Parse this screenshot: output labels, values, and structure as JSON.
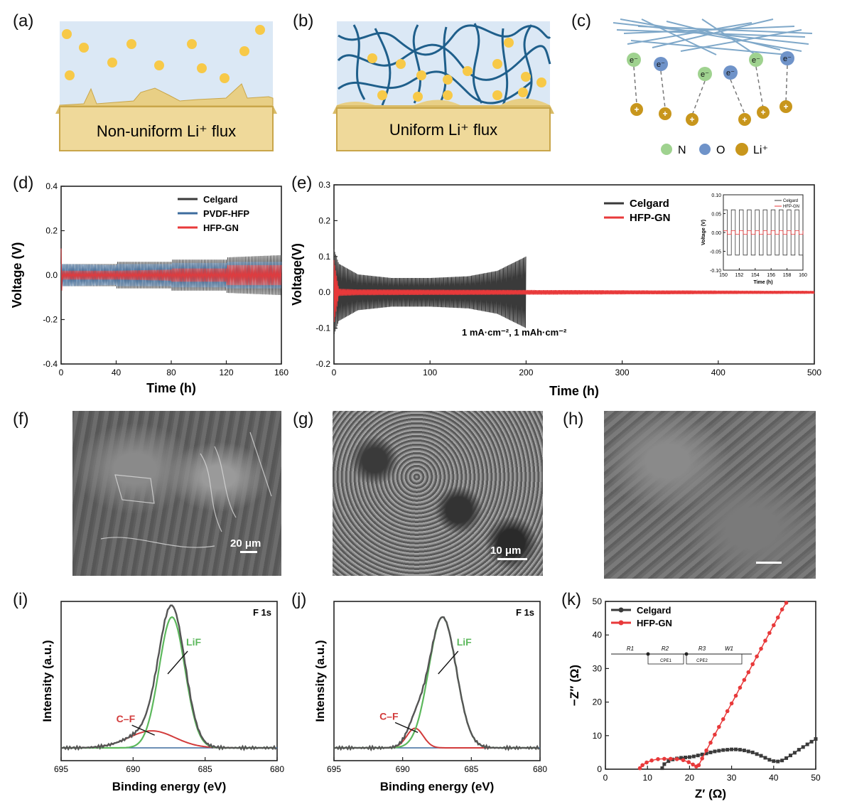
{
  "panels": {
    "a": {
      "letter": "(a)",
      "caption": "Non-uniform  Li⁺ flux"
    },
    "b": {
      "letter": "(b)",
      "caption": "Uniform  Li⁺ flux"
    },
    "c": {
      "letter": "(c)",
      "electron": "e⁻",
      "plus": "+",
      "legend": [
        {
          "label": "N",
          "color": "#9fd28f"
        },
        {
          "label": "O",
          "color": "#6f93c9"
        },
        {
          "label": "Li⁺",
          "color": "#c8961c"
        }
      ]
    },
    "d": {
      "letter": "(d)"
    },
    "e": {
      "letter": "(e)",
      "annotation": "1 mA·cm⁻², 1 mAh·cm⁻²"
    },
    "f": {
      "letter": "(f)",
      "scalebar": "20 μm"
    },
    "g": {
      "letter": "(g)",
      "scalebar": "10 μm"
    },
    "h": {
      "letter": "(h)"
    },
    "i": {
      "letter": "(i)",
      "tag": "F 1s",
      "lif_label": "LiF",
      "cf_label": "C–F"
    },
    "j": {
      "letter": "(j)",
      "tag": "F 1s",
      "lif_label": "LiF",
      "cf_label": "C–F"
    },
    "k": {
      "letter": "(k)",
      "circuit": {
        "r1": "R1",
        "r2": "R2",
        "r3": "R3",
        "w1": "W1",
        "cpe1": "CPE1",
        "cpe2": "CPE2"
      }
    }
  },
  "colors": {
    "celgard": "#3a3a3a",
    "pvdf": "#3d6c9e",
    "hfpgn": "#e8393a",
    "fit_green": "#5cb85c",
    "fit_red": "#d23b3b",
    "baseline": "#3d6c9e",
    "ion": "#f7c948",
    "electrode": "#efd99a",
    "electrolyte": "#dbe8f5"
  },
  "chart_data": [
    {
      "id": "d",
      "type": "line",
      "xlabel": "Time (h)",
      "ylabel": "Voltage (V)",
      "xlim": [
        0,
        160
      ],
      "ylim": [
        -0.4,
        0.4
      ],
      "xticks": [
        0,
        40,
        80,
        120,
        160
      ],
      "yticks": [
        -0.4,
        -0.2,
        0.0,
        0.2,
        0.4
      ],
      "legend_position": "top-right",
      "series": [
        {
          "name": "Celgard",
          "envelope": [
            [
              0,
              0.05
            ],
            [
              40,
              0.05
            ],
            [
              40.1,
              0.06
            ],
            [
              80,
              0.06
            ],
            [
              80.1,
              0.07
            ],
            [
              120,
              0.07
            ],
            [
              120.1,
              0.08
            ],
            [
              160,
              0.09
            ]
          ]
        },
        {
          "name": "PVDF-HFP",
          "envelope": [
            [
              0,
              0.05
            ],
            [
              40,
              0.045
            ],
            [
              40.1,
              0.05
            ],
            [
              80,
              0.05
            ],
            [
              80.1,
              0.055
            ],
            [
              120,
              0.055
            ],
            [
              120.1,
              0.06
            ],
            [
              160,
              0.06
            ]
          ]
        },
        {
          "name": "HFP-GN",
          "envelope": [
            [
              0,
              0.12
            ],
            [
              1,
              0.02
            ],
            [
              40,
              0.02
            ],
            [
              40.1,
              0.02
            ],
            [
              80,
              0.025
            ],
            [
              80.1,
              0.03
            ],
            [
              120,
              0.03
            ],
            [
              120.1,
              0.045
            ],
            [
              160,
              0.045
            ]
          ]
        }
      ]
    },
    {
      "id": "e",
      "type": "line",
      "xlabel": "Time (h)",
      "ylabel": "Voltage(V)",
      "xlim": [
        0,
        500
      ],
      "ylim": [
        -0.2,
        0.3
      ],
      "xticks": [
        0,
        100,
        200,
        300,
        400,
        500
      ],
      "yticks": [
        -0.2,
        -0.1,
        0.0,
        0.1,
        0.2,
        0.3
      ],
      "legend_position": "top-right",
      "series": [
        {
          "name": "Celgard",
          "envelope": [
            [
              0,
              0.12
            ],
            [
              5,
              0.08
            ],
            [
              25,
              0.05
            ],
            [
              60,
              0.04
            ],
            [
              100,
              0.04
            ],
            [
              140,
              0.045
            ],
            [
              170,
              0.06
            ],
            [
              200,
              0.1
            ]
          ]
        },
        {
          "name": "HFP-GN",
          "envelope": [
            [
              0,
              0.09
            ],
            [
              5,
              0.01
            ],
            [
              25,
              0.008
            ],
            [
              500,
              0.004
            ]
          ]
        }
      ],
      "inset": {
        "xlabel": "Time (h)",
        "ylabel": "Voltage (V)",
        "xlim": [
          150,
          160
        ],
        "ylim": [
          -0.1,
          0.1
        ],
        "xticks": [
          150,
          152,
          154,
          156,
          158,
          160
        ],
        "yticks": [
          -0.1,
          -0.05,
          0.0,
          0.05,
          0.1
        ],
        "series": [
          {
            "name": "Celgard",
            "amplitude": 0.06,
            "period_h": 1
          },
          {
            "name": "HFP-GN",
            "amplitude": 0.005,
            "period_h": 1
          }
        ]
      }
    },
    {
      "id": "i",
      "type": "line",
      "xlabel": "Binding energy (eV)",
      "ylabel": "Intensity (a.u.)",
      "xlim": [
        695,
        680
      ],
      "xticks": [
        695,
        690,
        685,
        680
      ],
      "peaks": [
        {
          "name": "LiF",
          "center": 687.3,
          "height": 1.0,
          "sigma": 0.9
        },
        {
          "name": "C–F",
          "center": 688.7,
          "height": 0.13,
          "sigma": 1.6
        }
      ],
      "baseline": 0.0
    },
    {
      "id": "j",
      "type": "line",
      "xlabel": "Binding energy (eV)",
      "ylabel": "Intensity (a.u.)",
      "xlim": [
        695,
        680
      ],
      "xticks": [
        695,
        690,
        685,
        680
      ],
      "peaks": [
        {
          "name": "LiF",
          "center": 687.1,
          "height": 1.0,
          "sigma": 1.0
        },
        {
          "name": "C–F",
          "center": 689.1,
          "height": 0.15,
          "sigma": 0.6
        }
      ],
      "baseline": 0.0
    },
    {
      "id": "k",
      "type": "scatter",
      "xlabel": "Z′ (Ω)",
      "ylabel": "−Z″ (Ω)",
      "xlim": [
        0,
        50
      ],
      "ylim": [
        0,
        50
      ],
      "xticks": [
        0,
        10,
        20,
        30,
        40,
        50
      ],
      "yticks": [
        0,
        10,
        20,
        30,
        40,
        50
      ],
      "legend_position": "top-left",
      "series": [
        {
          "name": "Celgard",
          "points": [
            [
              13.5,
              0.3
            ],
            [
              14,
              1.5
            ],
            [
              15,
              2.4
            ],
            [
              16,
              2.9
            ],
            [
              17,
              3.2
            ],
            [
              18,
              3.4
            ],
            [
              19,
              3.5
            ],
            [
              20,
              3.6
            ],
            [
              21,
              3.8
            ],
            [
              22,
              4.1
            ],
            [
              23,
              4.4
            ],
            [
              24,
              4.7
            ],
            [
              25,
              5.0
            ],
            [
              26,
              5.3
            ],
            [
              27,
              5.5
            ],
            [
              28,
              5.7
            ],
            [
              29,
              5.8
            ],
            [
              30,
              5.9
            ],
            [
              31,
              5.9
            ],
            [
              32,
              5.8
            ],
            [
              33,
              5.6
            ],
            [
              34,
              5.3
            ],
            [
              35,
              5.0
            ],
            [
              36,
              4.5
            ],
            [
              37,
              4.0
            ],
            [
              38,
              3.4
            ],
            [
              39,
              2.8
            ],
            [
              40,
              2.4
            ],
            [
              41,
              2.3
            ],
            [
              42,
              2.6
            ],
            [
              43,
              3.3
            ],
            [
              44,
              4.1
            ],
            [
              45,
              4.9
            ],
            [
              46,
              5.8
            ],
            [
              47,
              6.6
            ],
            [
              48,
              7.4
            ],
            [
              49,
              8.2
            ],
            [
              50,
              9.0
            ]
          ]
        },
        {
          "name": "HFP-GN",
          "points": [
            [
              8.2,
              0.3
            ],
            [
              8.8,
              1.2
            ],
            [
              9.8,
              2.0
            ],
            [
              11,
              2.6
            ],
            [
              12.5,
              3.0
            ],
            [
              14,
              3.1
            ],
            [
              15.5,
              3.1
            ],
            [
              17,
              3.0
            ],
            [
              18.5,
              2.7
            ],
            [
              19.8,
              2.1
            ],
            [
              20.8,
              1.4
            ],
            [
              21.6,
              0.8
            ],
            [
              22.2,
              1.2
            ],
            [
              23,
              3.2
            ],
            [
              24,
              5.6
            ],
            [
              25,
              7.9
            ],
            [
              26,
              10.3
            ],
            [
              27,
              12.6
            ],
            [
              28,
              14.9
            ],
            [
              29,
              17.3
            ],
            [
              30,
              19.6
            ],
            [
              31,
              21.9
            ],
            [
              32,
              24.3
            ],
            [
              33,
              26.6
            ],
            [
              34,
              28.9
            ],
            [
              35,
              31.3
            ],
            [
              36,
              33.6
            ],
            [
              37,
              35.9
            ],
            [
              38,
              38.3
            ],
            [
              39,
              40.6
            ],
            [
              40,
              42.9
            ],
            [
              41,
              45.2
            ],
            [
              42,
              47.6
            ],
            [
              43,
              49.6
            ]
          ]
        }
      ]
    }
  ]
}
